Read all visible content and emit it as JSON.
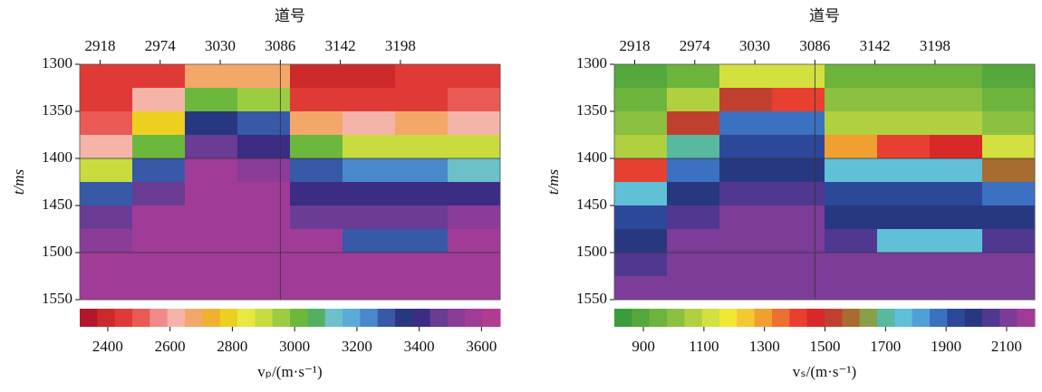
{
  "chart_data": [
    {
      "type": "heatmap",
      "xlabel": "道号",
      "ylabel": "t/ms",
      "colorbar_label": "vₚ/(m·s⁻¹)",
      "xlim": [
        2899,
        3291
      ],
      "xticks": [
        2918,
        2974,
        3030,
        3086,
        3142,
        3198
      ],
      "ylim": [
        1550,
        1300
      ],
      "yticks": [
        1300,
        1350,
        1400,
        1450,
        1500,
        1550
      ],
      "grid_x": [
        3086
      ],
      "grid_y": [
        1400,
        1500
      ],
      "clim": [
        2310,
        3660
      ],
      "cticks": [
        2400,
        2600,
        2800,
        3000,
        3200,
        3400,
        3600
      ],
      "colormap": [
        "#b2182b",
        "#cc2a2a",
        "#e03a36",
        "#ea5a55",
        "#f08a8a",
        "#f5b4a8",
        "#f3a86a",
        "#f0b030",
        "#ecd020",
        "#e8e840",
        "#c8dc40",
        "#9ccc40",
        "#6cb83c",
        "#54b060",
        "#6cc0c8",
        "#5aacd8",
        "#4a88cc",
        "#3858a8",
        "#283880",
        "#3c2c84",
        "#6a3c94",
        "#8a3c98",
        "#a03c98",
        "#b03c90"
      ],
      "z": [
        [
          2450,
          2450,
          2500,
          2600,
          2900,
          3300,
          3450,
          3500,
          3550,
          3600
        ],
        [
          2450,
          2600,
          2800,
          3000,
          3300,
          3450,
          3550,
          3600,
          3600,
          3600
        ],
        [
          2700,
          3000,
          3350,
          3450,
          3550,
          3600,
          3600,
          3600,
          3600,
          3600
        ],
        [
          2700,
          2950,
          3300,
          3400,
          3500,
          3550,
          3600,
          3600,
          3600,
          3600
        ],
        [
          2400,
          2450,
          2700,
          3000,
          3300,
          3400,
          3450,
          3550,
          3600,
          3600
        ],
        [
          2400,
          2450,
          2600,
          2900,
          3250,
          3400,
          3450,
          3300,
          3600,
          3600
        ],
        [
          2450,
          2450,
          2650,
          2900,
          3250,
          3400,
          3450,
          3300,
          3600,
          3600
        ],
        [
          2450,
          2500,
          2600,
          2900,
          3150,
          3400,
          3500,
          3550,
          3600,
          3600
        ]
      ]
    },
    {
      "type": "heatmap",
      "xlabel": "道号",
      "ylabel": "t/ms",
      "colorbar_label": "vₛ/(m·s⁻¹)",
      "xlim": [
        2899,
        3291
      ],
      "xticks": [
        2918,
        2974,
        3030,
        3086,
        3142,
        3198
      ],
      "ylim": [
        1550,
        1300
      ],
      "yticks": [
        1300,
        1350,
        1400,
        1450,
        1500,
        1550
      ],
      "grid_x": [
        3086
      ],
      "grid_y": [
        1400,
        1500
      ],
      "clim": [
        804,
        2193
      ],
      "cticks": [
        900,
        1100,
        1300,
        1500,
        1700,
        1900,
        2100
      ],
      "colormap": [
        "#3c9c3c",
        "#54a83c",
        "#6cb43c",
        "#8cc040",
        "#b0d040",
        "#d4e040",
        "#f0e830",
        "#f4c830",
        "#f0a030",
        "#ec7030",
        "#e84030",
        "#d82828",
        "#c04030",
        "#a86c30",
        "#88a048",
        "#58b8a0",
        "#60c0d8",
        "#50a0d8",
        "#3c70c0",
        "#2c4898",
        "#283880",
        "#503890",
        "#7c3c98",
        "#a03c98"
      ],
      "z": [
        [
          900,
          950,
          1000,
          1050,
          1400,
          1750,
          1950,
          2000,
          2050,
          2100
        ],
        [
          950,
          1050,
          1500,
          1700,
          1900,
          2000,
          2050,
          2100,
          2100,
          2100
        ],
        [
          1100,
          1500,
          1900,
          1950,
          2000,
          2050,
          2100,
          2100,
          2100,
          2100
        ],
        [
          1100,
          1400,
          1900,
          1950,
          2000,
          2050,
          2100,
          2100,
          2100,
          2100
        ],
        [
          950,
          1000,
          1050,
          1300,
          1750,
          1950,
          2000,
          2050,
          2100,
          2100
        ],
        [
          950,
          1000,
          1050,
          1400,
          1750,
          1950,
          2000,
          1750,
          2100,
          2100
        ],
        [
          950,
          1000,
          1050,
          1450,
          1750,
          1950,
          2000,
          1750,
          2100,
          2100
        ],
        [
          900,
          950,
          1000,
          1100,
          1600,
          1900,
          2000,
          2050,
          2100,
          2100
        ]
      ]
    }
  ]
}
